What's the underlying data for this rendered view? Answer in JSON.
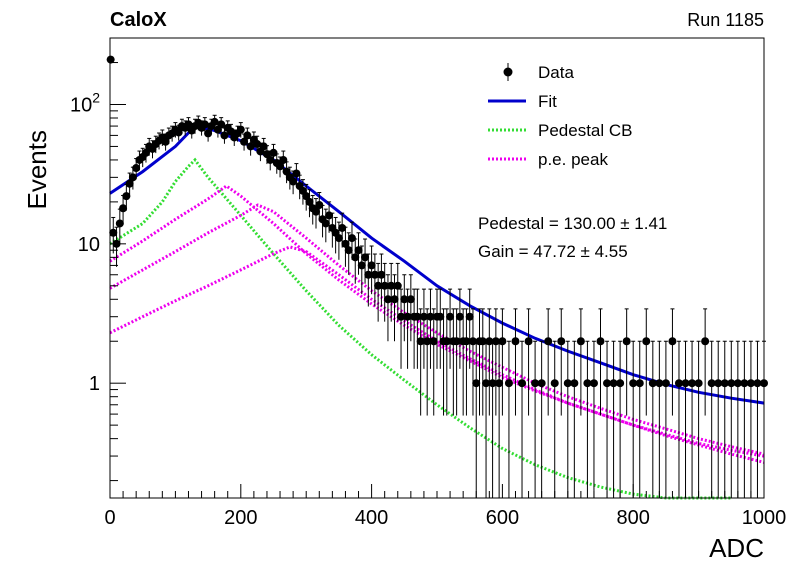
{
  "header": {
    "left_title": "CaloX",
    "right_title": "Run 1185"
  },
  "legend": {
    "placement": "top-right",
    "entries": [
      {
        "label": "Data",
        "style": "marker",
        "color": "#000000"
      },
      {
        "label": "Fit",
        "style": "line",
        "color": "#0000cc"
      },
      {
        "label": "Pedestal CB",
        "style": "dotted",
        "color": "#33dd33"
      },
      {
        "label": "p.e. peak",
        "style": "dotted",
        "color": "#ee00ee"
      }
    ]
  },
  "fit_results": {
    "pedestal": "Pedestal = 130.00 ± 1.41",
    "gain": "Gain = 47.72 ± 4.55"
  },
  "chart_data": {
    "type": "scatter",
    "xlabel": "ADC",
    "ylabel": "Events",
    "xlim": [
      0,
      1000
    ],
    "ylim": [
      0.15,
      300
    ],
    "yscale": "log",
    "grid": false,
    "x_ticks": [
      0,
      200,
      400,
      600,
      800,
      1000
    ],
    "y_ticks": [
      {
        "value": 1,
        "label": "1"
      },
      {
        "value": 10,
        "label": "10"
      },
      {
        "value": 100,
        "label": "10^2"
      }
    ],
    "series": [
      {
        "name": "Data",
        "kind": "points_with_errors",
        "color": "#000000",
        "x": [
          5,
          10,
          15,
          20,
          25,
          30,
          35,
          40,
          45,
          50,
          55,
          60,
          65,
          70,
          75,
          80,
          85,
          90,
          95,
          100,
          105,
          110,
          115,
          120,
          125,
          130,
          135,
          140,
          145,
          150,
          155,
          160,
          165,
          170,
          175,
          180,
          185,
          190,
          195,
          200,
          205,
          210,
          215,
          220,
          225,
          230,
          235,
          240,
          245,
          250,
          255,
          260,
          265,
          270,
          275,
          280,
          285,
          290,
          295,
          300,
          305,
          310,
          315,
          320,
          325,
          330,
          335,
          340,
          345,
          350,
          355,
          360,
          365,
          370,
          375,
          380,
          385,
          390,
          395,
          400,
          405,
          410,
          415,
          420,
          425,
          430,
          435,
          440,
          445,
          450,
          455,
          460,
          465,
          470,
          475,
          480,
          485,
          490,
          495,
          500,
          505,
          510,
          515,
          520,
          525,
          530,
          535,
          540,
          545,
          550,
          555,
          560,
          565,
          570,
          575,
          580,
          585,
          590,
          595,
          600,
          610,
          620,
          630,
          640,
          650,
          660,
          670,
          680,
          690,
          700,
          710,
          720,
          730,
          740,
          750,
          760,
          770,
          780,
          790,
          800,
          810,
          820,
          830,
          840,
          850,
          860,
          870,
          880,
          890,
          900,
          910,
          920,
          930,
          940,
          950,
          960,
          970,
          980,
          990,
          1000
        ],
        "y": [
          12,
          10,
          14,
          18,
          22,
          27,
          30,
          35,
          40,
          42,
          45,
          50,
          48,
          52,
          55,
          58,
          54,
          60,
          62,
          66,
          63,
          70,
          68,
          72,
          65,
          70,
          74,
          68,
          72,
          62,
          70,
          75,
          66,
          72,
          60,
          68,
          64,
          58,
          62,
          66,
          54,
          60,
          50,
          56,
          52,
          46,
          50,
          44,
          40,
          45,
          38,
          36,
          40,
          33,
          30,
          28,
          32,
          26,
          24,
          22,
          20,
          18,
          17,
          19,
          15,
          14,
          16,
          13,
          12,
          11,
          13,
          10,
          9,
          11,
          8,
          9,
          7,
          8,
          6,
          7,
          6,
          5,
          6,
          5,
          4,
          5,
          4,
          5,
          3,
          4,
          3,
          4,
          3,
          3,
          2,
          3,
          2,
          3,
          2,
          3,
          3,
          2,
          2,
          3,
          2,
          2,
          3,
          2,
          2,
          3,
          2,
          1,
          2,
          2,
          1,
          2,
          1,
          2,
          1,
          2,
          1,
          2,
          1,
          2,
          1,
          1,
          2,
          1,
          2,
          1,
          1,
          2,
          1,
          1,
          2,
          1,
          1,
          1,
          2,
          1,
          1,
          2,
          1,
          1,
          1,
          2,
          1,
          1,
          1,
          1,
          2,
          1,
          1,
          1,
          1,
          1,
          1,
          1,
          1,
          1
        ],
        "outlier": {
          "x": 1,
          "y": 210
        }
      },
      {
        "name": "Fit",
        "kind": "line",
        "color": "#0000cc",
        "x": [
          0,
          50,
          100,
          130,
          160,
          200,
          250,
          300,
          350,
          400,
          450,
          500,
          550,
          600,
          650,
          700,
          750,
          800,
          850,
          900,
          950,
          1000
        ],
        "y": [
          23,
          33,
          50,
          70,
          65,
          55,
          40,
          26,
          17,
          11,
          7.5,
          5.0,
          3.6,
          2.7,
          2.1,
          1.7,
          1.4,
          1.15,
          0.98,
          0.86,
          0.78,
          0.72
        ]
      },
      {
        "name": "Pedestal CB",
        "kind": "dotted",
        "color": "#33dd33",
        "x": [
          0,
          50,
          80,
          100,
          120,
          130,
          150,
          200,
          250,
          300,
          350,
          400,
          450,
          500,
          550,
          600,
          650,
          700,
          750,
          800,
          850,
          900,
          950
        ],
        "y": [
          10,
          14,
          20,
          28,
          36,
          40,
          30,
          16,
          8.5,
          4.6,
          2.6,
          1.6,
          1.05,
          0.7,
          0.48,
          0.34,
          0.26,
          0.21,
          0.18,
          0.16,
          0.15,
          0.15,
          0.15
        ]
      },
      {
        "name": "p.e. peak 1",
        "kind": "dotted",
        "color": "#ee00ee",
        "x": [
          0,
          50,
          100,
          150,
          178,
          200,
          250,
          300,
          350,
          400,
          450,
          500,
          550,
          600,
          650,
          700,
          750,
          800,
          850,
          900,
          950,
          1000
        ],
        "y": [
          7.5,
          10.5,
          15,
          21,
          26,
          22,
          14,
          8.5,
          5.5,
          3.7,
          2.6,
          1.9,
          1.45,
          1.1,
          0.88,
          0.72,
          0.6,
          0.5,
          0.43,
          0.37,
          0.33,
          0.3
        ]
      },
      {
        "name": "p.e. peak 2",
        "kind": "dotted",
        "color": "#ee00ee",
        "x": [
          0,
          50,
          100,
          150,
          200,
          226,
          250,
          300,
          350,
          400,
          450,
          500,
          550,
          600,
          650,
          700,
          750,
          800,
          850,
          900,
          950,
          1000
        ],
        "y": [
          4.8,
          6.5,
          8.8,
          12,
          16,
          19,
          17,
          11,
          7,
          4.6,
          3.2,
          2.3,
          1.7,
          1.3,
          1.0,
          0.8,
          0.66,
          0.55,
          0.47,
          0.4,
          0.35,
          0.31
        ]
      },
      {
        "name": "p.e. peak 3",
        "kind": "dotted",
        "color": "#ee00ee",
        "x": [
          0,
          50,
          100,
          150,
          200,
          250,
          275,
          300,
          350,
          400,
          450,
          500,
          550,
          600,
          650,
          700,
          750,
          800,
          850,
          900,
          950,
          1000
        ],
        "y": [
          2.3,
          3.0,
          3.9,
          5.0,
          6.5,
          8.5,
          9.5,
          8.8,
          6.0,
          4.0,
          2.8,
          2.0,
          1.5,
          1.15,
          0.9,
          0.72,
          0.6,
          0.5,
          0.42,
          0.36,
          0.31,
          0.27
        ]
      }
    ]
  }
}
